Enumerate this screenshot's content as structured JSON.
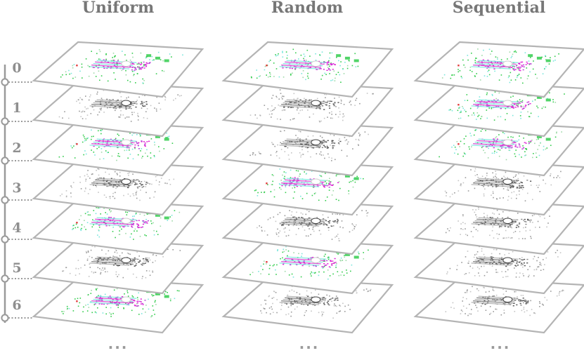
{
  "columns": [
    {
      "title": "Uniform",
      "labeled": [
        true,
        false,
        true,
        false,
        true,
        false,
        true
      ]
    },
    {
      "title": "Random",
      "labeled": [
        true,
        false,
        false,
        true,
        false,
        true,
        false
      ]
    },
    {
      "title": "Sequential",
      "labeled": [
        true,
        true,
        true,
        false,
        false,
        false,
        false
      ]
    }
  ],
  "frame_labels": [
    "0",
    "1",
    "2",
    "3",
    "4",
    "5",
    "6"
  ],
  "ellipsis": "...",
  "colors": {
    "title": "#777777",
    "axis": "#9a9a9a",
    "plane_border": "#b4b4b4",
    "magenta": "#e026d6",
    "green": "#33cc4d",
    "cyan": "#78e6dc",
    "gray_points": "#555555"
  }
}
